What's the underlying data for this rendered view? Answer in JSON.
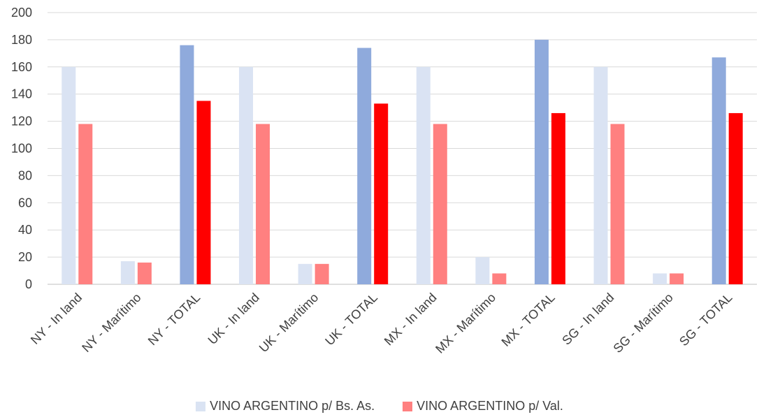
{
  "chart_data": {
    "type": "bar",
    "categories": [
      "NY - In land",
      "NY - Marítimo",
      "NY - TOTAL",
      "UK - In land",
      "UK - Marítimo",
      "UK - TOTAL",
      "MX - In land",
      "MX - Marítimo",
      "MX - TOTAL",
      "SG - In land",
      "SG - Marítimo",
      "SG - TOTAL"
    ],
    "series": [
      {
        "name": "VINO ARGENTINO p/ Bs. As.",
        "values": [
          160,
          17,
          176,
          160,
          15,
          174,
          160,
          20,
          180,
          160,
          8,
          167
        ],
        "color": "#dae3f3",
        "total_color": "#8faadc"
      },
      {
        "name": "VINO ARGENTINO p/ Val.",
        "values": [
          118,
          16,
          135,
          118,
          15,
          133,
          118,
          8,
          126,
          118,
          8,
          126
        ],
        "color": "#ff8080",
        "total_color": "#ff0000"
      }
    ],
    "ylim": [
      0,
      200
    ],
    "yticks": [
      0,
      20,
      40,
      60,
      80,
      100,
      120,
      140,
      160,
      180,
      200
    ],
    "grid": true,
    "legend_position": "bottom"
  }
}
